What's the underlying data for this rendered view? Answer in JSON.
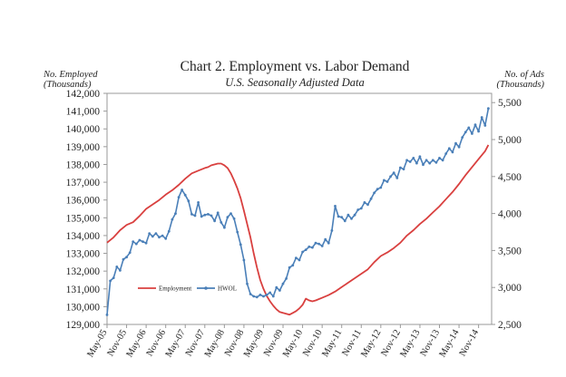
{
  "chart_data": {
    "type": "line",
    "title": "Chart 2. Employment vs. Labor Demand",
    "subtitle": "U.S. Seasonally Adjusted Data",
    "left_axis_title": [
      "No. Employed",
      "(Thousands)"
    ],
    "right_axis_title": [
      "No. of Ads",
      "(Thousands)"
    ],
    "y_left": {
      "lim": [
        129000,
        142000
      ],
      "ticks": [
        129000,
        130000,
        131000,
        132000,
        133000,
        134000,
        135000,
        136000,
        137000,
        138000,
        139000,
        140000,
        141000,
        142000
      ],
      "tick_labels": [
        "129,000",
        "130,000",
        "131,000",
        "132,000",
        "133,000",
        "134,000",
        "135,000",
        "136,000",
        "137,000",
        "138,000",
        "139,000",
        "140,000",
        "141,000",
        "142,000"
      ]
    },
    "y_right": {
      "lim": [
        2500,
        5625
      ],
      "ticks": [
        2500,
        3000,
        3500,
        4000,
        4500,
        5000,
        5500
      ],
      "tick_labels": [
        "2,500",
        "3,000",
        "3,500",
        "4,000",
        "4,500",
        "5,000",
        "5,500"
      ]
    },
    "x_ticks": [
      {
        "label": "May-05",
        "t": 0
      },
      {
        "label": "Nov-05",
        "t": 6
      },
      {
        "label": "May-06",
        "t": 12
      },
      {
        "label": "Nov-06",
        "t": 18
      },
      {
        "label": "May-07",
        "t": 24
      },
      {
        "label": "Nov-07",
        "t": 30
      },
      {
        "label": "May-08",
        "t": 36
      },
      {
        "label": "Nov-08",
        "t": 42
      },
      {
        "label": "May-09",
        "t": 48
      },
      {
        "label": "Nov-09",
        "t": 54
      },
      {
        "label": "May-10",
        "t": 60
      },
      {
        "label": "Nov-10",
        "t": 66
      },
      {
        "label": "May-11",
        "t": 72
      },
      {
        "label": "Nov-11",
        "t": 78
      },
      {
        "label": "May-12",
        "t": 84
      },
      {
        "label": "Nov-12",
        "t": 90
      },
      {
        "label": "May-13",
        "t": 96
      },
      {
        "label": "Nov-13",
        "t": 102
      },
      {
        "label": "May-14",
        "t": 108
      },
      {
        "label": "Nov-14",
        "t": 114
      }
    ],
    "x_range": [
      0,
      118
    ],
    "legend": [
      {
        "name": "Employment",
        "color": "#d9403f"
      },
      {
        "name": "HWOL",
        "color": "#4a7fb8"
      }
    ],
    "series": [
      {
        "name": "Employment",
        "axis": "left",
        "color": "#d9403f",
        "points": [
          [
            0,
            133600
          ],
          [
            2,
            133900
          ],
          [
            4,
            134300
          ],
          [
            6,
            134600
          ],
          [
            8,
            134750
          ],
          [
            10,
            135100
          ],
          [
            12,
            135500
          ],
          [
            14,
            135750
          ],
          [
            16,
            136000
          ],
          [
            18,
            136300
          ],
          [
            20,
            136550
          ],
          [
            22,
            136850
          ],
          [
            24,
            137200
          ],
          [
            26,
            137500
          ],
          [
            28,
            137650
          ],
          [
            30,
            137800
          ],
          [
            31,
            137850
          ],
          [
            32,
            137950
          ],
          [
            34,
            138050
          ],
          [
            35,
            138050
          ],
          [
            36,
            137950
          ],
          [
            37,
            137800
          ],
          [
            38,
            137500
          ],
          [
            39,
            137100
          ],
          [
            40,
            136650
          ],
          [
            41,
            136100
          ],
          [
            42,
            135400
          ],
          [
            43,
            134650
          ],
          [
            44,
            133900
          ],
          [
            45,
            133000
          ],
          [
            46,
            132200
          ],
          [
            47,
            131500
          ],
          [
            48,
            131000
          ],
          [
            49,
            130600
          ],
          [
            50,
            130300
          ],
          [
            51,
            130050
          ],
          [
            52,
            129850
          ],
          [
            53,
            129700
          ],
          [
            54,
            129650
          ],
          [
            55,
            129600
          ],
          [
            56,
            129550
          ],
          [
            57,
            129650
          ],
          [
            58,
            129750
          ],
          [
            59,
            129900
          ],
          [
            60,
            130100
          ],
          [
            61,
            130450
          ],
          [
            62,
            130350
          ],
          [
            63,
            130300
          ],
          [
            64,
            130350
          ],
          [
            66,
            130500
          ],
          [
            68,
            130650
          ],
          [
            70,
            130850
          ],
          [
            72,
            131100
          ],
          [
            74,
            131350
          ],
          [
            76,
            131600
          ],
          [
            78,
            131850
          ],
          [
            80,
            132100
          ],
          [
            82,
            132500
          ],
          [
            84,
            132850
          ],
          [
            86,
            133050
          ],
          [
            88,
            133300
          ],
          [
            90,
            133600
          ],
          [
            92,
            134000
          ],
          [
            94,
            134300
          ],
          [
            96,
            134650
          ],
          [
            98,
            134950
          ],
          [
            100,
            135300
          ],
          [
            102,
            135650
          ],
          [
            104,
            136050
          ],
          [
            106,
            136450
          ],
          [
            108,
            136900
          ],
          [
            110,
            137400
          ],
          [
            112,
            137850
          ],
          [
            114,
            138300
          ],
          [
            116,
            138750
          ],
          [
            117,
            139100
          ]
        ]
      },
      {
        "name": "HWOL",
        "axis": "right",
        "color": "#4a7fb8",
        "points": [
          [
            0,
            2630
          ],
          [
            1,
            3090
          ],
          [
            2,
            3130
          ],
          [
            3,
            3280
          ],
          [
            4,
            3230
          ],
          [
            5,
            3380
          ],
          [
            6,
            3410
          ],
          [
            7,
            3470
          ],
          [
            8,
            3620
          ],
          [
            9,
            3590
          ],
          [
            10,
            3640
          ],
          [
            11,
            3620
          ],
          [
            12,
            3600
          ],
          [
            13,
            3730
          ],
          [
            14,
            3690
          ],
          [
            15,
            3730
          ],
          [
            16,
            3680
          ],
          [
            17,
            3700
          ],
          [
            18,
            3660
          ],
          [
            19,
            3760
          ],
          [
            20,
            3920
          ],
          [
            21,
            4000
          ],
          [
            22,
            4220
          ],
          [
            23,
            4320
          ],
          [
            24,
            4250
          ],
          [
            25,
            4170
          ],
          [
            26,
            3990
          ],
          [
            27,
            3970
          ],
          [
            28,
            4150
          ],
          [
            29,
            3960
          ],
          [
            30,
            3980
          ],
          [
            31,
            3990
          ],
          [
            32,
            3970
          ],
          [
            33,
            3900
          ],
          [
            34,
            4010
          ],
          [
            35,
            3880
          ],
          [
            36,
            3810
          ],
          [
            37,
            3950
          ],
          [
            38,
            4000
          ],
          [
            39,
            3930
          ],
          [
            40,
            3750
          ],
          [
            41,
            3580
          ],
          [
            42,
            3370
          ],
          [
            43,
            3050
          ],
          [
            44,
            2910
          ],
          [
            45,
            2880
          ],
          [
            46,
            2870
          ],
          [
            47,
            2900
          ],
          [
            48,
            2880
          ],
          [
            49,
            2900
          ],
          [
            50,
            2930
          ],
          [
            51,
            2880
          ],
          [
            52,
            3000
          ],
          [
            53,
            2960
          ],
          [
            54,
            3050
          ],
          [
            55,
            3120
          ],
          [
            56,
            3270
          ],
          [
            57,
            3300
          ],
          [
            58,
            3400
          ],
          [
            59,
            3370
          ],
          [
            60,
            3480
          ],
          [
            61,
            3510
          ],
          [
            62,
            3550
          ],
          [
            63,
            3540
          ],
          [
            64,
            3600
          ],
          [
            65,
            3590
          ],
          [
            66,
            3560
          ],
          [
            67,
            3650
          ],
          [
            68,
            3600
          ],
          [
            69,
            3770
          ],
          [
            70,
            4100
          ],
          [
            71,
            3960
          ],
          [
            72,
            3950
          ],
          [
            73,
            3900
          ],
          [
            74,
            3980
          ],
          [
            75,
            3930
          ],
          [
            76,
            3980
          ],
          [
            77,
            4050
          ],
          [
            78,
            4070
          ],
          [
            79,
            4150
          ],
          [
            80,
            4120
          ],
          [
            81,
            4200
          ],
          [
            82,
            4280
          ],
          [
            83,
            4330
          ],
          [
            84,
            4350
          ],
          [
            85,
            4450
          ],
          [
            86,
            4430
          ],
          [
            87,
            4500
          ],
          [
            88,
            4550
          ],
          [
            89,
            4480
          ],
          [
            90,
            4620
          ],
          [
            91,
            4600
          ],
          [
            92,
            4720
          ],
          [
            93,
            4700
          ],
          [
            94,
            4750
          ],
          [
            95,
            4680
          ],
          [
            96,
            4770
          ],
          [
            97,
            4660
          ],
          [
            98,
            4720
          ],
          [
            99,
            4680
          ],
          [
            100,
            4720
          ],
          [
            101,
            4690
          ],
          [
            102,
            4750
          ],
          [
            103,
            4720
          ],
          [
            104,
            4810
          ],
          [
            105,
            4880
          ],
          [
            106,
            4830
          ],
          [
            107,
            4950
          ],
          [
            108,
            4900
          ],
          [
            109,
            5030
          ],
          [
            110,
            5100
          ],
          [
            111,
            5160
          ],
          [
            112,
            5080
          ],
          [
            113,
            5200
          ],
          [
            114,
            5110
          ],
          [
            115,
            5300
          ],
          [
            116,
            5190
          ],
          [
            117,
            5420
          ]
        ]
      }
    ]
  }
}
